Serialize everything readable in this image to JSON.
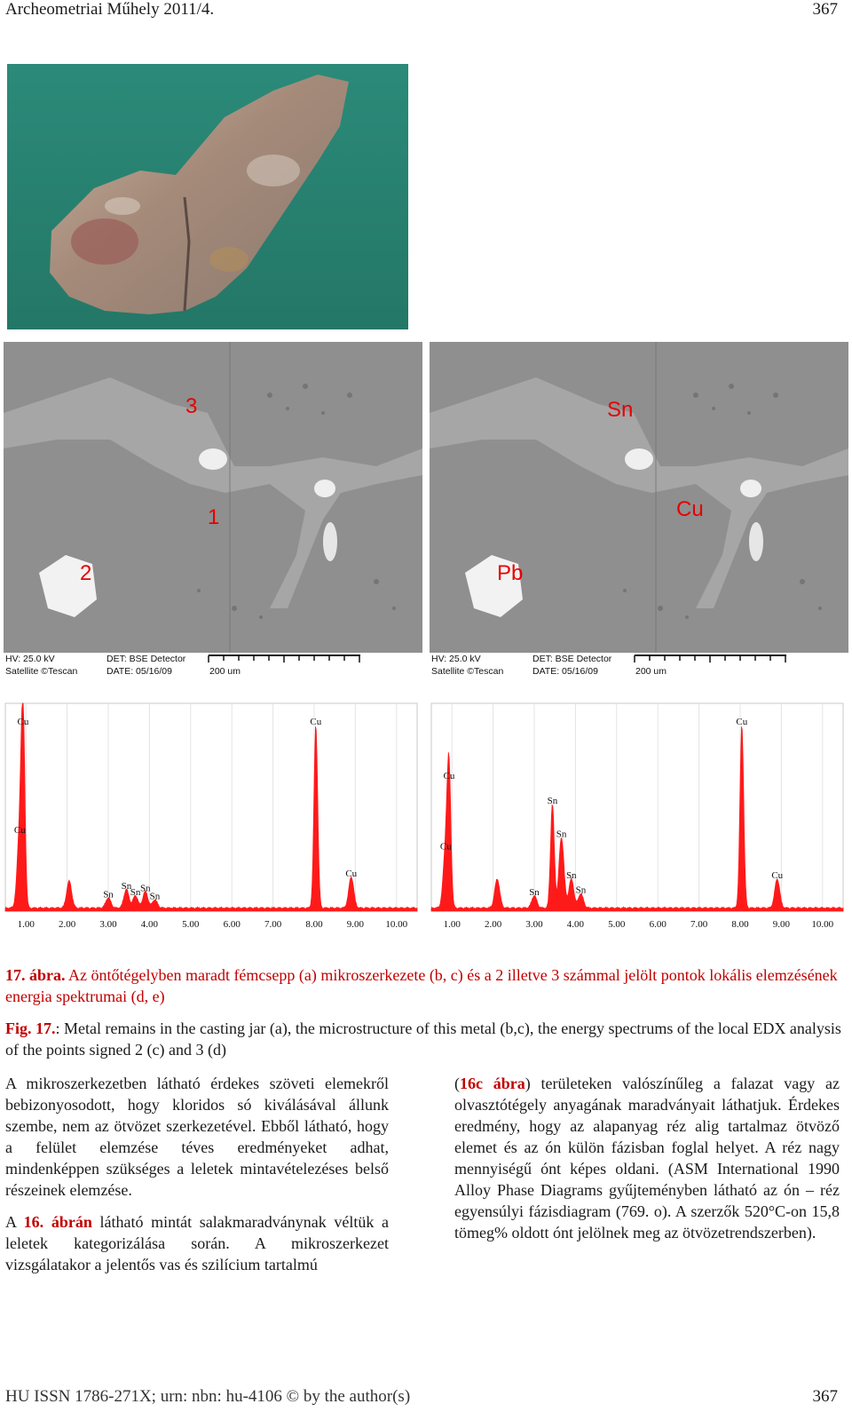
{
  "header": {
    "journal": "Archeometriai Műhely 2011/4.",
    "page": "367"
  },
  "sem_left": {
    "labels": [
      "3",
      "1",
      "2"
    ],
    "hv": "HV: 25.0 kV",
    "vendor": "Satellite ©Tescan",
    "det": "DET: BSE Detector",
    "date": "DATE: 05/16/09",
    "scale": "200 um"
  },
  "sem_right": {
    "labels": [
      "Sn",
      "Cu",
      "Pb"
    ],
    "hv": "HV: 25.0 kV",
    "vendor": "Satellite ©Tescan",
    "det": "DET: BSE Detector",
    "date": "DATE: 05/16/09",
    "scale": "200 um"
  },
  "chart_data": [
    {
      "type": "line",
      "title": "",
      "xlabel": "",
      "ylabel": "",
      "xlim": [
        0.5,
        10.5
      ],
      "ylim": [
        0,
        100
      ],
      "x_ticks": [
        "1.00",
        "2.00",
        "3.00",
        "4.00",
        "5.00",
        "6.00",
        "7.00",
        "8.00",
        "9.00",
        "10.00"
      ],
      "peaks": [
        {
          "label": "Cu",
          "x": 0.93,
          "y": 88
        },
        {
          "label": "Cu",
          "x": 0.85,
          "y": 36
        },
        {
          "label": "",
          "x": 2.05,
          "y": 13
        },
        {
          "label": "Sn",
          "x": 3.0,
          "y": 5
        },
        {
          "label": "Sn",
          "x": 3.44,
          "y": 9
        },
        {
          "label": "Sn",
          "x": 3.66,
          "y": 6
        },
        {
          "label": "Sn",
          "x": 3.9,
          "y": 8
        },
        {
          "label": "Sn",
          "x": 4.13,
          "y": 4
        },
        {
          "label": "Cu",
          "x": 8.04,
          "y": 88
        },
        {
          "label": "Cu",
          "x": 8.9,
          "y": 15
        }
      ]
    },
    {
      "type": "line",
      "title": "",
      "xlabel": "",
      "ylabel": "",
      "xlim": [
        0.5,
        10.5
      ],
      "ylim": [
        0,
        100
      ],
      "x_ticks": [
        "1.00",
        "2.00",
        "3.00",
        "4.00",
        "5.00",
        "6.00",
        "7.00",
        "8.00",
        "9.00",
        "10.00"
      ],
      "peaks": [
        {
          "label": "Cu",
          "x": 0.93,
          "y": 62
        },
        {
          "label": "Cu",
          "x": 0.85,
          "y": 28
        },
        {
          "label": "",
          "x": 2.1,
          "y": 14
        },
        {
          "label": "Sn",
          "x": 3.0,
          "y": 6
        },
        {
          "label": "Sn",
          "x": 3.44,
          "y": 50
        },
        {
          "label": "Sn",
          "x": 3.66,
          "y": 34
        },
        {
          "label": "Sn",
          "x": 3.9,
          "y": 14
        },
        {
          "label": "Sn",
          "x": 4.13,
          "y": 7
        },
        {
          "label": "Cu",
          "x": 8.04,
          "y": 88
        },
        {
          "label": "Cu",
          "x": 8.9,
          "y": 14
        }
      ]
    }
  ],
  "caption": {
    "hu_label": "17. ábra.",
    "hu_text": " Az öntőtégelyben maradt fémcsepp (a) mikroszerkezete (b, c) és a 2 illetve 3 számmal jelölt pontok lokális elemzésének energia spektrumai (d, e)",
    "en_label": "Fig. 17.",
    "en_text": ": Metal remains in the casting jar (a), the microstructure of this metal (b,c), the energy spectrums of the local EDX analysis of the points signed 2 (c)  and 3 (d)"
  },
  "body": {
    "left_p1": "A mikroszerkezetben látható érdekes szöveti elemekről bebizonyosodott, hogy kloridos só kiválásával állunk szembe, nem az ötvözet szerkezetével. Ebből látható, hogy a felület elemzése téves eredményeket adhat, mindenképpen szükséges a leletek mintavételezéses belső részeinek elemzése.",
    "left_p2_a": "A ",
    "left_p2_ref": "16. ábrán",
    "left_p2_b": " látható mintát salakmaradványnak véltük a leletek kategorizálása során. A mikroszerkezet vizsgálatakor a jelentős vas és szilícium tartalmú",
    "right_p1_a": "(",
    "right_p1_ref": "16c ábra",
    "right_p1_b": ") területeken valószínűleg a falazat vagy az olvasztótégely anyagának maradványait láthatjuk. Érdekes eredmény, hogy az alapanyag réz alig tartalmaz ötvöző elemet és az ón külön fázisban foglal helyet. A réz nagy mennyiségű ónt képes oldani. (ASM International 1990 Alloy Phase Diagrams gyűjteményben látható az ón – réz egyensúlyi fázisdiagram (769. o). A szerzők 520°C-on 15,8 tömeg% oldott ónt jelölnek meg az ötvözetrendszerben)."
  },
  "footer": {
    "issn": "HU ISSN 1786-271X; urn: nbn: hu-4106 © by the author(s)",
    "page": "367"
  },
  "colors": {
    "accent_red": "#c00000",
    "spectrum_red": "#ff1a1a",
    "felt_green": "#2f8d7c"
  }
}
